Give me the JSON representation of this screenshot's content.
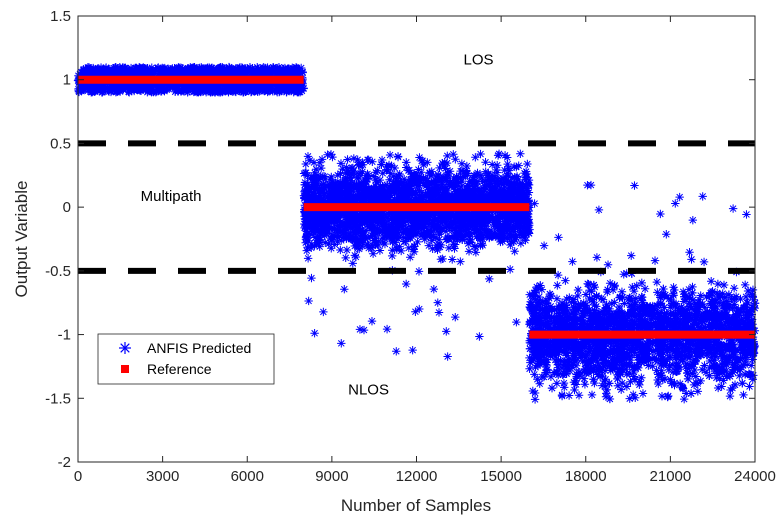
{
  "chart_data": {
    "type": "scatter",
    "title": "",
    "xlabel": "Number of Samples",
    "ylabel": "Output Variable",
    "xlim": [
      0,
      24000
    ],
    "ylim": [
      -2,
      1.5
    ],
    "x_ticks": [
      "0",
      "3000",
      "6000",
      "9000",
      "12000",
      "15000",
      "18000",
      "21000",
      "24000"
    ],
    "y_ticks": [
      "-2",
      "-1.5",
      "-1",
      "-0.5",
      "0",
      "0.5",
      "1",
      "1.5"
    ],
    "grid": false,
    "legend_position": "bottom-left",
    "thresholds": [
      0.5,
      -0.5
    ],
    "annotations": [
      {
        "text": "LOS",
        "x": 14200,
        "y": 1.12
      },
      {
        "text": "Multipath",
        "x": 3300,
        "y": 0.05
      },
      {
        "text": "NLOS",
        "x": 10300,
        "y": -1.47
      }
    ],
    "series": [
      {
        "name": "ANFIS Predicted",
        "marker": "asterisk",
        "color": "#0000ff",
        "segments": [
          {
            "x_range": [
              0,
              8000
            ],
            "center": 1.0,
            "spread": 0.11,
            "outlier_max": 0.12
          },
          {
            "x_range": [
              8000,
              16000
            ],
            "center": 0.0,
            "spread": 0.32,
            "outlier_max": 0.42,
            "outlier_min": -1.19
          },
          {
            "x_range": [
              16000,
              24000
            ],
            "center": -1.0,
            "spread": 0.38,
            "outlier_max": 0.18,
            "outlier_min": -1.51
          }
        ]
      },
      {
        "name": "Reference",
        "marker": "square",
        "color": "#ff0000",
        "segments": [
          {
            "x_range": [
              0,
              8000
            ],
            "value": 1
          },
          {
            "x_range": [
              8000,
              16000
            ],
            "value": 0
          },
          {
            "x_range": [
              16000,
              24000
            ],
            "value": -1
          }
        ]
      }
    ]
  }
}
